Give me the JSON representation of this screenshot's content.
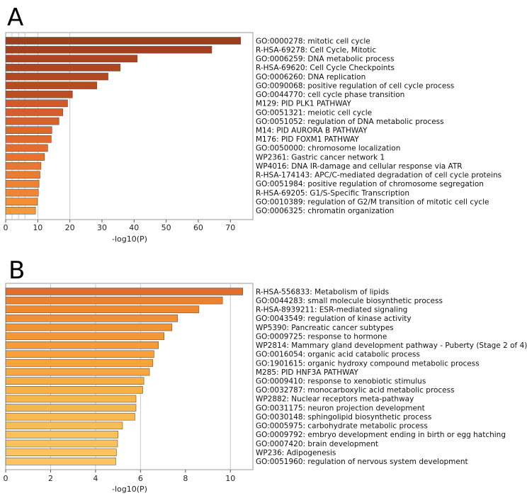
{
  "chart_data": [
    {
      "panel": "A",
      "type": "bar",
      "orientation": "horizontal",
      "xlabel": "-log10(P)",
      "xlim": [
        0,
        77
      ],
      "xticks": [
        0,
        10,
        20,
        30,
        40,
        50,
        60,
        70
      ],
      "gridlines": [
        2,
        4,
        6,
        10,
        20
      ],
      "categories": [
        "GO:0000278: mitotic cell cycle",
        "R-HSA-69278: Cell Cycle, Mitotic",
        "GO:0006259: DNA metabolic process",
        "R-HSA-69620: Cell Cycle Checkpoints",
        "GO:0006260: DNA replication",
        "GO:0090068: positive regulation of cell cycle process",
        "GO:0044770: cell cycle phase transition",
        "M129: PID PLK1 PATHWAY",
        "GO:0051321: meiotic cell cycle",
        "GO:0051052: regulation of DNA metabolic process",
        "M14: PID AURORA B PATHWAY",
        "M176: PID FOXM1 PATHWAY",
        "GO:0050000: chromosome localization",
        "WP2361: Gastric cancer network 1",
        "WP4016: DNA IR-damage and cellular response via ATR",
        "R-HSA-174143: APC/C-mediated degradation of cell cycle proteins",
        "GO:0051984: positive regulation of chromosome segregation",
        "R-HSA-69205: G1/S-Specific Transcription",
        "GO:0010389: regulation of G2/M transition of mitotic cell cycle",
        "GO:0006325: chromatin organization"
      ],
      "values": [
        73.2,
        64.2,
        41.0,
        35.7,
        31.9,
        28.4,
        20.8,
        19.3,
        17.8,
        16.6,
        14.4,
        14.2,
        13.1,
        12.1,
        11.0,
        10.7,
        10.4,
        10.2,
        9.9,
        9.3
      ],
      "colors": [
        "#a03c20",
        "#a63f20",
        "#ad4420",
        "#b04620",
        "#b34820",
        "#b64a21",
        "#bd4d22",
        "#d25a29",
        "#d65e2a",
        "#d9622b",
        "#df682c",
        "#e06a2d",
        "#e46e2e",
        "#e7732f",
        "#ea7830",
        "#ec7c31",
        "#ef8232",
        "#f08633",
        "#f39036",
        "#f49a3a"
      ]
    },
    {
      "panel": "B",
      "type": "bar",
      "orientation": "horizontal",
      "xlabel": "-log10(P)",
      "xlim": [
        0,
        11.0
      ],
      "xticks": [
        0,
        2,
        4,
        6,
        8,
        10
      ],
      "gridlines": [
        2,
        4,
        6,
        10
      ],
      "categories": [
        "R-HSA-556833: Metabolism of lipids",
        "GO:0044283: small molecule biosynthetic process",
        "R-HSA-8939211: ESR-mediated signaling",
        "GO:0043549: regulation of kinase activity",
        "WP5390: Pancreatic cancer subtypes",
        "GO:0009725: response to hormone",
        "WP2814: Mammary gland development pathway - Puberty (Stage 2 of 4)",
        "GO:0016054: organic acid catabolic process",
        "GO:1901615: organic hydroxy compound metabolic process",
        "M285: PID HNF3A PATHWAY",
        "GO:0009410: response to xenobiotic stimulus",
        "GO:0032787: monocarboxylic acid metabolic process",
        "WP2882: Nuclear receptors meta-pathway",
        "GO:0031175: neuron projection development",
        "GO:0030148: sphingolipid biosynthetic process",
        "GO:0005975: carbohydrate metabolic process",
        "GO:0009792: embryo development ending in birth or egg hatching",
        "GO:0007420: brain development",
        "WP236: Adipogenesis",
        "GO:0051960: regulation of nervous system development"
      ],
      "values": [
        10.55,
        9.65,
        8.6,
        7.65,
        7.4,
        7.05,
        6.8,
        6.6,
        6.55,
        6.4,
        6.15,
        6.1,
        5.8,
        5.8,
        5.75,
        5.2,
        5.0,
        4.98,
        4.93,
        4.9
      ],
      "colors": [
        "#e06e2d",
        "#ec8130",
        "#ef8a32",
        "#f08f33",
        "#f29434",
        "#f39835",
        "#f49c37",
        "#f5a03a",
        "#f5a43c",
        "#f6a83e",
        "#f7ad42",
        "#f7b045",
        "#f8b54b",
        "#f8b74d",
        "#f9b94f",
        "#f9bd55",
        "#fac05a",
        "#fac25c",
        "#fbc460",
        "#fbc662"
      ]
    }
  ]
}
